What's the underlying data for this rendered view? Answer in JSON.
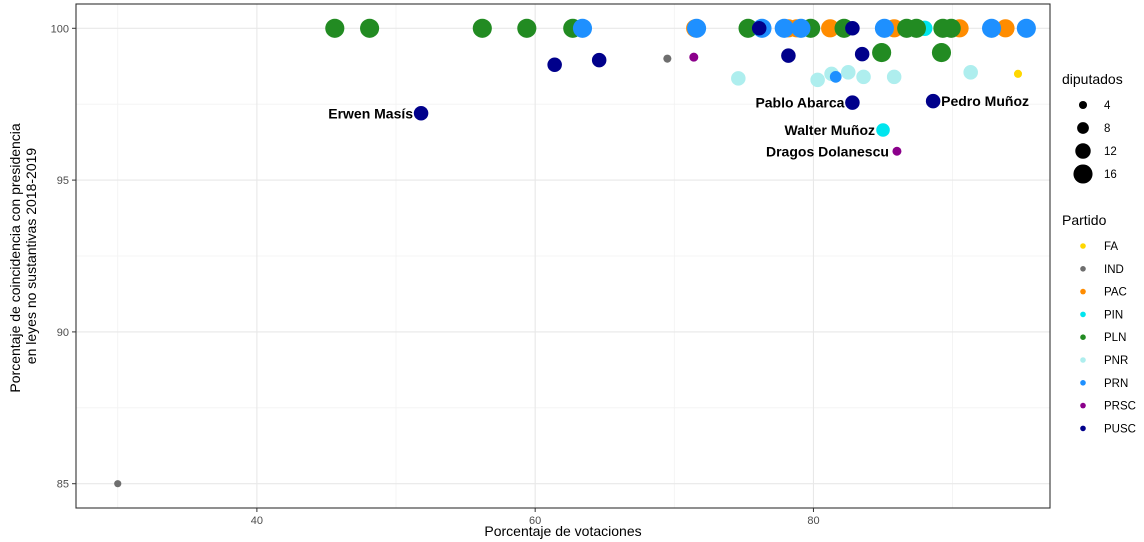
{
  "chart_data": {
    "type": "scatter",
    "xlabel": "Porcentaje de votaciones",
    "ylabel_lines": [
      "Porcentaje de coincidencia con presidencia",
      "en leyes no sustantivas 2018-2019"
    ],
    "xlim": [
      27,
      97
    ],
    "ylim": [
      84.2,
      100.8
    ],
    "xticks": [
      40,
      60,
      80
    ],
    "yticks": [
      85,
      90,
      95,
      100
    ],
    "grid": true,
    "size_legend": {
      "title": "diputados",
      "entries": [
        {
          "label": "4",
          "value": 4
        },
        {
          "label": "8",
          "value": 8
        },
        {
          "label": "12",
          "value": 12
        },
        {
          "label": "16",
          "value": 16
        }
      ]
    },
    "color_legend": {
      "title": "Partido",
      "entries": [
        {
          "label": "FA",
          "color": "#FFD700"
        },
        {
          "label": "IND",
          "color": "#6E6E6E"
        },
        {
          "label": "PAC",
          "color": "#FF8C00"
        },
        {
          "label": "PIN",
          "color": "#00E5EE"
        },
        {
          "label": "PLN",
          "color": "#228B22"
        },
        {
          "label": "PNR",
          "color": "#AEEEEE"
        },
        {
          "label": "PRN",
          "color": "#1E90FF"
        },
        {
          "label": "PRSC",
          "color": "#8B008B"
        },
        {
          "label": "PUSC",
          "color": "#00008B"
        }
      ]
    },
    "annotations": [
      {
        "text": "Erwen Masís",
        "x": 51.8,
        "y": 97.2,
        "anchor": "end"
      },
      {
        "text": "Pablo Abarca",
        "x": 82.8,
        "y": 97.55,
        "anchor": "end"
      },
      {
        "text": "Pedro Muñoz",
        "x": 88.6,
        "y": 97.6,
        "anchor": "start"
      },
      {
        "text": "Walter Muñoz",
        "x": 85.0,
        "y": 96.65,
        "anchor": "end"
      },
      {
        "text": "Dragos Dolanescu",
        "x": 86.0,
        "y": 95.95,
        "anchor": "end"
      }
    ],
    "series": [
      {
        "name": "FA",
        "points": [
          {
            "x": 94.7,
            "y": 98.5,
            "size": 4
          }
        ]
      },
      {
        "name": "IND",
        "points": [
          {
            "x": 30.0,
            "y": 85.0,
            "size": 3
          },
          {
            "x": 69.5,
            "y": 99.0,
            "size": 4
          }
        ]
      },
      {
        "name": "PAC",
        "points": [
          {
            "x": 71.5,
            "y": 100,
            "size": 15
          },
          {
            "x": 78.2,
            "y": 100,
            "size": 15
          },
          {
            "x": 78.8,
            "y": 100,
            "size": 15
          },
          {
            "x": 81.2,
            "y": 100,
            "size": 15
          },
          {
            "x": 85.8,
            "y": 100,
            "size": 15
          },
          {
            "x": 90.5,
            "y": 100,
            "size": 15
          },
          {
            "x": 93.8,
            "y": 100,
            "size": 15
          }
        ]
      },
      {
        "name": "PIN",
        "points": [
          {
            "x": 88.0,
            "y": 100,
            "size": 12
          },
          {
            "x": 85.0,
            "y": 96.65,
            "size": 10
          }
        ]
      },
      {
        "name": "PLN",
        "points": [
          {
            "x": 45.6,
            "y": 100,
            "size": 16
          },
          {
            "x": 48.1,
            "y": 100,
            "size": 16
          },
          {
            "x": 56.2,
            "y": 100,
            "size": 16
          },
          {
            "x": 59.4,
            "y": 100,
            "size": 16
          },
          {
            "x": 62.7,
            "y": 100,
            "size": 16
          },
          {
            "x": 75.3,
            "y": 100,
            "size": 16
          },
          {
            "x": 79.8,
            "y": 100,
            "size": 16
          },
          {
            "x": 82.2,
            "y": 100,
            "size": 16
          },
          {
            "x": 86.7,
            "y": 100,
            "size": 16
          },
          {
            "x": 87.4,
            "y": 100,
            "size": 16
          },
          {
            "x": 89.3,
            "y": 100,
            "size": 16
          },
          {
            "x": 89.9,
            "y": 100,
            "size": 16
          },
          {
            "x": 84.9,
            "y": 99.2,
            "size": 16
          },
          {
            "x": 89.2,
            "y": 99.2,
            "size": 16
          }
        ]
      },
      {
        "name": "PNR",
        "points": [
          {
            "x": 74.6,
            "y": 98.35,
            "size": 11
          },
          {
            "x": 80.3,
            "y": 98.3,
            "size": 11
          },
          {
            "x": 81.3,
            "y": 98.5,
            "size": 11
          },
          {
            "x": 82.5,
            "y": 98.55,
            "size": 11
          },
          {
            "x": 83.6,
            "y": 98.4,
            "size": 11
          },
          {
            "x": 85.8,
            "y": 98.4,
            "size": 11
          },
          {
            "x": 91.3,
            "y": 98.55,
            "size": 11
          }
        ]
      },
      {
        "name": "PRN",
        "points": [
          {
            "x": 63.4,
            "y": 100,
            "size": 16
          },
          {
            "x": 71.6,
            "y": 100,
            "size": 16
          },
          {
            "x": 76.3,
            "y": 100,
            "size": 16
          },
          {
            "x": 77.9,
            "y": 100,
            "size": 16
          },
          {
            "x": 79.1,
            "y": 100,
            "size": 16
          },
          {
            "x": 85.1,
            "y": 100,
            "size": 16
          },
          {
            "x": 92.8,
            "y": 100,
            "size": 16
          },
          {
            "x": 95.3,
            "y": 100,
            "size": 16
          },
          {
            "x": 81.6,
            "y": 98.4,
            "size": 8
          }
        ]
      },
      {
        "name": "PRSC",
        "points": [
          {
            "x": 71.4,
            "y": 99.05,
            "size": 5
          },
          {
            "x": 86.0,
            "y": 95.95,
            "size": 5
          }
        ]
      },
      {
        "name": "PUSC",
        "points": [
          {
            "x": 51.8,
            "y": 97.2,
            "size": 11
          },
          {
            "x": 61.4,
            "y": 98.8,
            "size": 11
          },
          {
            "x": 64.6,
            "y": 98.95,
            "size": 11
          },
          {
            "x": 76.1,
            "y": 100,
            "size": 11
          },
          {
            "x": 78.2,
            "y": 99.1,
            "size": 11
          },
          {
            "x": 82.8,
            "y": 100,
            "size": 11
          },
          {
            "x": 83.5,
            "y": 99.15,
            "size": 11
          },
          {
            "x": 82.8,
            "y": 97.55,
            "size": 11
          },
          {
            "x": 88.6,
            "y": 97.6,
            "size": 11
          }
        ]
      }
    ]
  }
}
